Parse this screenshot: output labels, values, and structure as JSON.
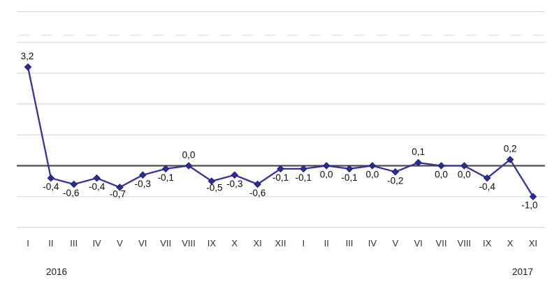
{
  "chart_data": {
    "type": "line",
    "title": "",
    "legend": false,
    "grid": true,
    "x_axis": {
      "tick_labels": [
        "I",
        "II",
        "III",
        "IV",
        "V",
        "VI",
        "VII",
        "VIII",
        "IX",
        "X",
        "XI",
        "XII",
        "I",
        "II",
        "III",
        "IV",
        "V",
        "VI",
        "VII",
        "VIII",
        "IX",
        "X",
        "XI"
      ],
      "year_labels": [
        "2016",
        "2017"
      ]
    },
    "y_axis": {
      "labels_visible": false,
      "min": -2,
      "max": 5,
      "gridline_values": [
        5,
        4,
        3,
        2,
        1,
        0,
        -1,
        -2
      ]
    },
    "series": [
      {
        "name": "monthly change",
        "color": "#333399",
        "values": [
          3.2,
          -0.4,
          -0.6,
          -0.4,
          -0.7,
          -0.3,
          -0.1,
          0.0,
          -0.5,
          -0.3,
          -0.6,
          -0.1,
          -0.1,
          0.0,
          -0.1,
          0.0,
          -0.2,
          0.1,
          0.0,
          0.0,
          -0.4,
          0.2,
          -1.0
        ],
        "point_labels": [
          "3,2",
          "-0,4",
          "-0,6",
          "-0,4",
          "-0,7",
          "-0,3",
          "-0,1",
          "0,0",
          "-0,5",
          "-0,3",
          "-0,6",
          "-0,1",
          "-0,1",
          "0,0",
          "-0,1",
          "0,0",
          "-0,2",
          "0,1",
          "0,0",
          "0,0",
          "-0,4",
          "0,2",
          "-1,0"
        ],
        "label_positions": [
          "above",
          "below",
          "below",
          "below",
          "below",
          "below",
          "below",
          "above",
          "below",
          "below",
          "below",
          "below",
          "below",
          "below",
          "below",
          "below",
          "below",
          "above",
          "below",
          "below",
          "below",
          "above",
          "below"
        ]
      }
    ]
  },
  "colors": {
    "line": "#333399",
    "marker_fill": "#2d2d91",
    "marker_stroke": "#20206b",
    "gridline": "#d9d9d9",
    "dashed_gridline": "#e4e4e4",
    "zero_line": "#4d4d4d",
    "data_label_text": "#0a0a0a",
    "axis_text": "#2f2f2f"
  }
}
